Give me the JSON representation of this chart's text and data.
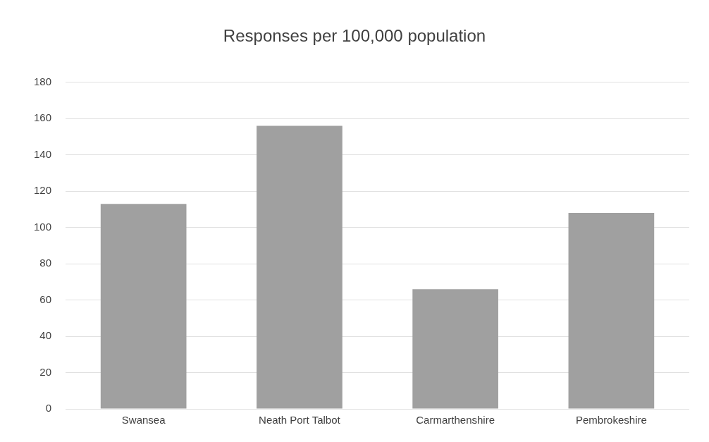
{
  "chart_data": {
    "type": "bar",
    "title": "Responses per 100,000 population",
    "categories": [
      "Swansea",
      "Neath Port Talbot",
      "Carmarthenshire",
      "Pembrokeshire"
    ],
    "values": [
      113,
      156,
      66,
      108
    ],
    "color": "#a0a0a0",
    "ylim": [
      0,
      180
    ],
    "yticks": [
      0,
      20,
      40,
      60,
      80,
      100,
      120,
      140,
      160,
      180
    ],
    "grid": "y"
  }
}
